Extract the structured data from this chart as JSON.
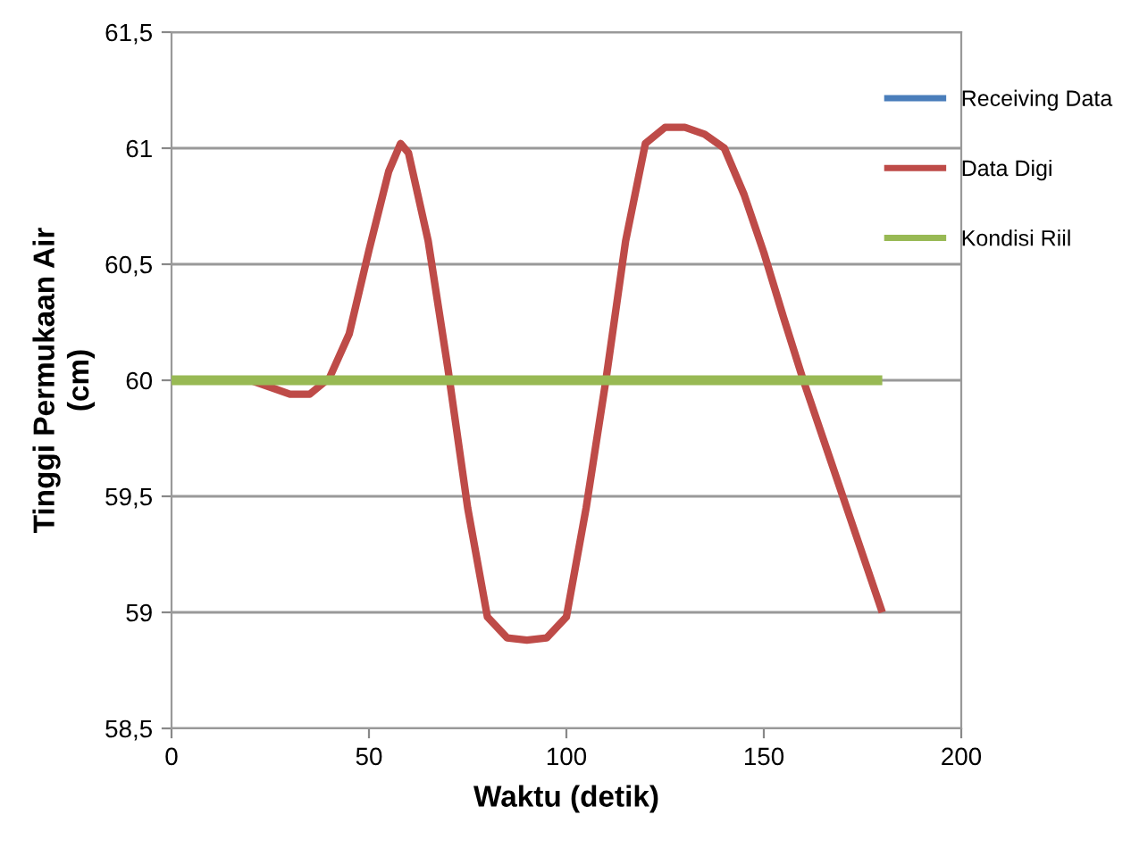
{
  "chart_data": {
    "type": "line",
    "xlabel": "Waktu (detik)",
    "ylabel": "Tinggi Permukaan Air\n(cm)",
    "xlim": [
      0,
      200
    ],
    "xticks": [
      0,
      50,
      100,
      150,
      200
    ],
    "ylim": [
      58.5,
      61.5
    ],
    "yticks": [
      {
        "value": 58.5,
        "label": "58,5"
      },
      {
        "value": 59,
        "label": "59"
      },
      {
        "value": 59.5,
        "label": "59,5"
      },
      {
        "value": 60,
        "label": "60"
      },
      {
        "value": 60.5,
        "label": "60,5"
      },
      {
        "value": 61,
        "label": "61"
      },
      {
        "value": 61.5,
        "label": "61,5"
      }
    ],
    "grid": "y",
    "legend": "right",
    "marker": "none",
    "line_style": "solid",
    "series": [
      {
        "name": "Receiving Data",
        "color": "#4a7ebb"
      },
      {
        "name": "Data Digi",
        "color": "#be4b48",
        "x": [
          0,
          20,
          25,
          30,
          35,
          40,
          45,
          50,
          55,
          58,
          60,
          65,
          70,
          75,
          80,
          85,
          90,
          95,
          100,
          105,
          110,
          115,
          120,
          125,
          130,
          135,
          140,
          145,
          150,
          155,
          160,
          165,
          170,
          175,
          180
        ],
        "values": [
          60,
          60,
          59.97,
          59.94,
          59.94,
          60.01,
          60.2,
          60.56,
          60.9,
          61.02,
          60.98,
          60.6,
          60.05,
          59.45,
          58.98,
          58.89,
          58.88,
          58.89,
          58.98,
          59.45,
          60,
          60.6,
          61.02,
          61.09,
          61.09,
          61.06,
          61.0,
          60.8,
          60.55,
          60.27,
          60,
          59.75,
          59.5,
          59.25,
          59
        ]
      },
      {
        "name": "Kondisi Riil",
        "color": "#98b954",
        "x": [
          0,
          180
        ],
        "values": [
          60,
          60
        ]
      }
    ]
  }
}
